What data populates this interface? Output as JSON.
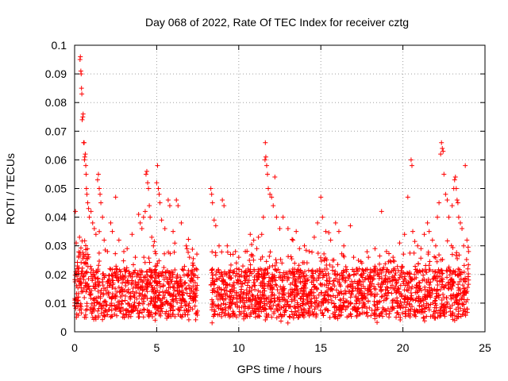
{
  "chart_data": {
    "type": "scatter",
    "title": "Day 068 of 2022, Rate Of TEC Index for receiver cztg",
    "xlabel": "GPS time / hours",
    "ylabel": "ROTI / TECUs",
    "xlim": [
      0,
      25
    ],
    "ylim": [
      0,
      0.1
    ],
    "xticks": [
      0,
      5,
      10,
      15,
      20,
      25
    ],
    "xtick_labels": [
      "0",
      "5",
      "10",
      "15",
      "20",
      "25"
    ],
    "yticks": [
      0,
      0.01,
      0.02,
      0.03,
      0.04,
      0.05,
      0.06,
      0.07,
      0.08,
      0.09,
      0.1
    ],
    "ytick_labels": [
      "0",
      "0.01",
      "0.02",
      "0.03",
      "0.04",
      "0.05",
      "0.06",
      "0.07",
      "0.08",
      "0.09",
      "0.1"
    ],
    "grid": true,
    "marker": "+",
    "color": "#ff0000",
    "gap_hours": [
      7.5,
      8.3
    ],
    "series": [
      {
        "name": "ROTI",
        "points": [
          [
            0.05,
            0.042
          ],
          [
            0.1,
            0.031
          ],
          [
            0.15,
            0.022
          ],
          [
            0.2,
            0.018
          ],
          [
            0.25,
            0.026
          ],
          [
            0.3,
            0.033
          ],
          [
            0.33,
            0.095
          ],
          [
            0.35,
            0.096
          ],
          [
            0.38,
            0.091
          ],
          [
            0.4,
            0.09
          ],
          [
            0.42,
            0.085
          ],
          [
            0.44,
            0.083
          ],
          [
            0.46,
            0.074
          ],
          [
            0.5,
            0.075
          ],
          [
            0.52,
            0.076
          ],
          [
            0.55,
            0.066
          ],
          [
            0.58,
            0.066
          ],
          [
            0.6,
            0.06
          ],
          [
            0.62,
            0.061
          ],
          [
            0.65,
            0.062
          ],
          [
            0.68,
            0.058
          ],
          [
            0.7,
            0.055
          ],
          [
            0.72,
            0.05
          ],
          [
            0.75,
            0.048
          ],
          [
            0.8,
            0.045
          ],
          [
            0.85,
            0.043
          ],
          [
            0.9,
            0.04
          ],
          [
            1.0,
            0.042
          ],
          [
            1.1,
            0.038
          ],
          [
            1.2,
            0.036
          ],
          [
            1.3,
            0.034
          ],
          [
            1.4,
            0.053
          ],
          [
            1.45,
            0.055
          ],
          [
            1.5,
            0.05
          ],
          [
            1.55,
            0.048
          ],
          [
            1.6,
            0.045
          ],
          [
            1.7,
            0.04
          ],
          [
            1.8,
            0.032
          ],
          [
            2.0,
            0.028
          ],
          [
            2.2,
            0.038
          ],
          [
            2.3,
            0.035
          ],
          [
            2.5,
            0.047
          ],
          [
            2.7,
            0.032
          ],
          [
            3.0,
            0.028
          ],
          [
            3.2,
            0.029
          ],
          [
            3.5,
            0.034
          ],
          [
            3.7,
            0.026
          ],
          [
            3.9,
            0.041
          ],
          [
            4.0,
            0.038
          ],
          [
            4.1,
            0.036
          ],
          [
            4.2,
            0.04
          ],
          [
            4.3,
            0.042
          ],
          [
            4.35,
            0.055
          ],
          [
            4.4,
            0.056
          ],
          [
            4.45,
            0.052
          ],
          [
            4.5,
            0.05
          ],
          [
            4.55,
            0.044
          ],
          [
            4.6,
            0.04
          ],
          [
            4.7,
            0.033
          ],
          [
            4.8,
            0.03
          ],
          [
            4.9,
            0.028
          ],
          [
            5.0,
            0.052
          ],
          [
            5.05,
            0.058
          ],
          [
            5.1,
            0.05
          ],
          [
            5.15,
            0.048
          ],
          [
            5.2,
            0.045
          ],
          [
            5.3,
            0.039
          ],
          [
            5.5,
            0.036
          ],
          [
            5.7,
            0.046
          ],
          [
            5.8,
            0.044
          ],
          [
            6.0,
            0.035
          ],
          [
            6.2,
            0.046
          ],
          [
            6.3,
            0.044
          ],
          [
            6.5,
            0.038
          ],
          [
            6.8,
            0.03
          ],
          [
            7.0,
            0.026
          ],
          [
            7.2,
            0.024
          ],
          [
            7.4,
            0.022
          ],
          [
            8.3,
            0.05
          ],
          [
            8.35,
            0.048
          ],
          [
            8.4,
            0.045
          ],
          [
            8.5,
            0.039
          ],
          [
            8.6,
            0.037
          ],
          [
            8.8,
            0.03
          ],
          [
            9.0,
            0.046
          ],
          [
            9.1,
            0.044
          ],
          [
            9.3,
            0.03
          ],
          [
            9.5,
            0.027
          ],
          [
            9.8,
            0.028
          ],
          [
            10.0,
            0.026
          ],
          [
            10.4,
            0.028
          ],
          [
            10.7,
            0.034
          ],
          [
            10.9,
            0.025
          ],
          [
            11.1,
            0.029
          ],
          [
            11.2,
            0.033
          ],
          [
            11.4,
            0.034
          ],
          [
            11.5,
            0.04
          ],
          [
            11.6,
            0.06
          ],
          [
            11.62,
            0.066
          ],
          [
            11.65,
            0.061
          ],
          [
            11.7,
            0.058
          ],
          [
            11.75,
            0.055
          ],
          [
            11.8,
            0.05
          ],
          [
            11.9,
            0.048
          ],
          [
            12.0,
            0.047
          ],
          [
            12.1,
            0.044
          ],
          [
            12.2,
            0.054
          ],
          [
            12.3,
            0.04
          ],
          [
            12.5,
            0.036
          ],
          [
            12.7,
            0.04
          ],
          [
            13.0,
            0.036
          ],
          [
            13.3,
            0.032
          ],
          [
            13.5,
            0.035
          ],
          [
            13.7,
            0.029
          ],
          [
            14.0,
            0.03
          ],
          [
            14.3,
            0.028
          ],
          [
            14.6,
            0.033
          ],
          [
            14.8,
            0.038
          ],
          [
            15.0,
            0.047
          ],
          [
            15.1,
            0.04
          ],
          [
            15.3,
            0.035
          ],
          [
            15.6,
            0.032
          ],
          [
            15.9,
            0.038
          ],
          [
            16.1,
            0.035
          ],
          [
            16.4,
            0.03
          ],
          [
            16.8,
            0.037
          ],
          [
            17.0,
            0.026
          ],
          [
            17.5,
            0.024
          ],
          [
            17.9,
            0.026
          ],
          [
            18.3,
            0.029
          ],
          [
            18.7,
            0.042
          ],
          [
            19.0,
            0.028
          ],
          [
            19.4,
            0.026
          ],
          [
            19.8,
            0.031
          ],
          [
            20.1,
            0.034
          ],
          [
            20.3,
            0.047
          ],
          [
            20.5,
            0.06
          ],
          [
            20.55,
            0.058
          ],
          [
            20.6,
            0.035
          ],
          [
            20.9,
            0.03
          ],
          [
            21.1,
            0.029
          ],
          [
            21.3,
            0.034
          ],
          [
            21.5,
            0.038
          ],
          [
            21.6,
            0.035
          ],
          [
            21.8,
            0.032
          ],
          [
            22.0,
            0.03
          ],
          [
            22.1,
            0.04
          ],
          [
            22.2,
            0.045
          ],
          [
            22.3,
            0.062
          ],
          [
            22.35,
            0.066
          ],
          [
            22.4,
            0.064
          ],
          [
            22.45,
            0.063
          ],
          [
            22.5,
            0.055
          ],
          [
            22.6,
            0.048
          ],
          [
            22.7,
            0.046
          ],
          [
            22.8,
            0.04
          ],
          [
            23.0,
            0.044
          ],
          [
            23.1,
            0.05
          ],
          [
            23.15,
            0.053
          ],
          [
            23.2,
            0.054
          ],
          [
            23.25,
            0.05
          ],
          [
            23.3,
            0.046
          ],
          [
            23.35,
            0.045
          ],
          [
            23.4,
            0.04
          ],
          [
            23.5,
            0.038
          ],
          [
            23.6,
            0.036
          ],
          [
            23.7,
            0.03
          ],
          [
            23.8,
            0.058
          ],
          [
            23.9,
            0.032
          ],
          [
            24.0,
            0.028
          ]
        ]
      }
    ]
  }
}
